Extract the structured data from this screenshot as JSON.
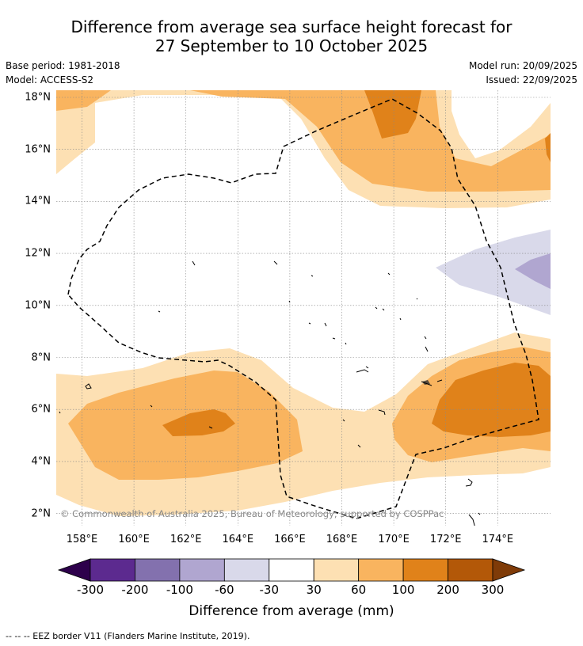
{
  "title_line1": "Difference from average sea surface height forecast for",
  "title_line2": "27 September to 10 October 2025",
  "meta_left": [
    "Base period: 1981-2018",
    "Model: ACCESS-S2"
  ],
  "meta_right": [
    "Model run: 20/09/2025",
    "Issued: 22/09/2025"
  ],
  "copyright": "© Commonwealth of Australia 2025, Bureau of Meteorology; supported by COSPPac",
  "lon_ticks": [
    "158°E",
    "160°E",
    "162°E",
    "164°E",
    "166°E",
    "168°E",
    "170°E",
    "172°E",
    "174°E"
  ],
  "lat_ticks": [
    "18°N",
    "16°N",
    "14°N",
    "12°N",
    "10°N",
    "8°N",
    "6°N",
    "4°N",
    "2°N"
  ],
  "colorbar": {
    "labels": [
      "-300",
      "-200",
      "-100",
      "-60",
      "-30",
      "30",
      "60",
      "100",
      "200",
      "300"
    ],
    "colors": [
      "#2d004b",
      "#5c2a8f",
      "#8371ae",
      "#b0a6d0",
      "#d9d9ea",
      "#ffffff",
      "#fde0b3",
      "#f9b45f",
      "#e0821a",
      "#b35808",
      "#7f3b08"
    ],
    "title": "Difference from average (mm)"
  },
  "colors": {
    "c30_60": "#fde0b3",
    "c60_100": "#f9b45f",
    "c100_200": "#e0821a",
    "cm30_60": "#d9d9ea",
    "cm60_100": "#b0a6d0",
    "land": "#555555"
  },
  "footer": "--  --  -- EEZ border V11 (Flanders Marine Institute, 2019)."
}
